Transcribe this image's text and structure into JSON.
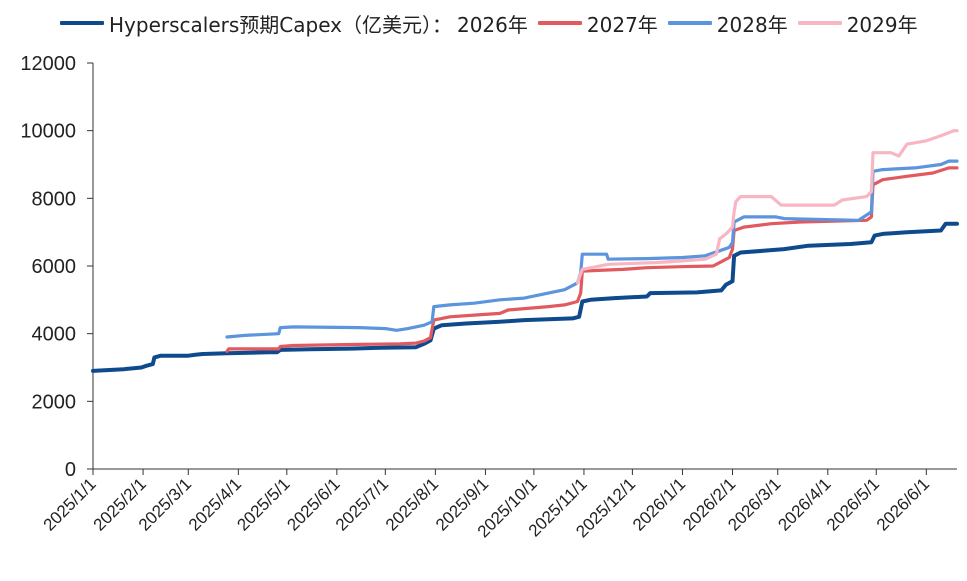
{
  "chart_data": {
    "type": "line",
    "title": "",
    "xlabel": "",
    "ylabel": "",
    "ylim": [
      0,
      12000
    ],
    "yticks": [
      0,
      2000,
      4000,
      6000,
      8000,
      10000,
      12000
    ],
    "x_range": [
      "2025-01-01",
      "2026-06-20"
    ],
    "x_tick_labels": [
      "2025/1/1",
      "2025/2/1",
      "2025/3/1",
      "2025/4/1",
      "2025/5/1",
      "2025/6/1",
      "2025/7/1",
      "2025/8/1",
      "2025/9/1",
      "2025/10/1",
      "2025/11/1",
      "2025/12/1",
      "2026/1/1",
      "2026/2/1",
      "2026/3/1",
      "2026/4/1",
      "2026/5/1",
      "2026/6/1"
    ],
    "grid": false,
    "legend_position": "top",
    "legend_prefix": "Hyperscalers预期Capex（亿美元）：",
    "series": [
      {
        "name": "2026年",
        "color": "#0e4a8c",
        "points": [
          [
            "2025-01-01",
            2900
          ],
          [
            "2025-01-20",
            2950
          ],
          [
            "2025-01-31",
            3000
          ],
          [
            "2025-02-03",
            3050
          ],
          [
            "2025-02-07",
            3100
          ],
          [
            "2025-02-08",
            3300
          ],
          [
            "2025-02-12",
            3350
          ],
          [
            "2025-03-01",
            3350
          ],
          [
            "2025-03-06",
            3380
          ],
          [
            "2025-03-10",
            3400
          ],
          [
            "2025-03-25",
            3420
          ],
          [
            "2025-04-20",
            3450
          ],
          [
            "2025-04-25",
            3450
          ],
          [
            "2025-04-27",
            3520
          ],
          [
            "2025-05-15",
            3540
          ],
          [
            "2025-06-10",
            3560
          ],
          [
            "2025-06-25",
            3580
          ],
          [
            "2025-07-20",
            3600
          ],
          [
            "2025-07-25",
            3700
          ],
          [
            "2025-07-29",
            3800
          ],
          [
            "2025-07-31",
            4150
          ],
          [
            "2025-08-05",
            4250
          ],
          [
            "2025-08-20",
            4300
          ],
          [
            "2025-09-10",
            4350
          ],
          [
            "2025-09-25",
            4400
          ],
          [
            "2025-10-25",
            4450
          ],
          [
            "2025-10-29",
            4500
          ],
          [
            "2025-10-31",
            4950
          ],
          [
            "2025-11-05",
            5000
          ],
          [
            "2025-11-20",
            5050
          ],
          [
            "2025-12-10",
            5100
          ],
          [
            "2025-12-12",
            5200
          ],
          [
            "2026-01-10",
            5220
          ],
          [
            "2026-01-25",
            5280
          ],
          [
            "2026-01-28",
            5450
          ],
          [
            "2026-02-01",
            5550
          ],
          [
            "2026-02-02",
            6300
          ],
          [
            "2026-02-06",
            6400
          ],
          [
            "2026-02-20",
            6450
          ],
          [
            "2026-03-05",
            6500
          ],
          [
            "2026-03-20",
            6600
          ],
          [
            "2026-04-15",
            6650
          ],
          [
            "2026-04-28",
            6700
          ],
          [
            "2026-04-30",
            6900
          ],
          [
            "2026-05-05",
            6950
          ],
          [
            "2026-05-20",
            7000
          ],
          [
            "2026-06-10",
            7050
          ],
          [
            "2026-06-13",
            7250
          ],
          [
            "2026-06-20",
            7250
          ]
        ]
      },
      {
        "name": "2027年",
        "color": "#e05a5f",
        "points": [
          [
            "2025-03-25",
            3480
          ],
          [
            "2025-03-26",
            3550
          ],
          [
            "2025-04-26",
            3550
          ],
          [
            "2025-04-27",
            3620
          ],
          [
            "2025-05-05",
            3650
          ],
          [
            "2025-06-10",
            3680
          ],
          [
            "2025-07-10",
            3700
          ],
          [
            "2025-07-20",
            3720
          ],
          [
            "2025-07-25",
            3780
          ],
          [
            "2025-07-29",
            3880
          ],
          [
            "2025-07-31",
            4400
          ],
          [
            "2025-08-10",
            4500
          ],
          [
            "2025-08-25",
            4550
          ],
          [
            "2025-09-10",
            4600
          ],
          [
            "2025-09-15",
            4700
          ],
          [
            "2025-10-10",
            4800
          ],
          [
            "2025-10-20",
            4850
          ],
          [
            "2025-10-28",
            4950
          ],
          [
            "2025-10-30",
            5200
          ],
          [
            "2025-10-31",
            5850
          ],
          [
            "2025-11-10",
            5870
          ],
          [
            "2025-11-25",
            5900
          ],
          [
            "2025-12-10",
            5950
          ],
          [
            "2025-12-31",
            5980
          ],
          [
            "2026-01-20",
            6000
          ],
          [
            "2026-01-26",
            6150
          ],
          [
            "2026-01-30",
            6250
          ],
          [
            "2026-02-01",
            6500
          ],
          [
            "2026-02-02",
            7050
          ],
          [
            "2026-02-08",
            7150
          ],
          [
            "2026-02-25",
            7250
          ],
          [
            "2026-03-15",
            7300
          ],
          [
            "2026-04-25",
            7350
          ],
          [
            "2026-04-28",
            7450
          ],
          [
            "2026-04-29",
            8400
          ],
          [
            "2026-05-05",
            8550
          ],
          [
            "2026-05-20",
            8650
          ],
          [
            "2026-06-05",
            8750
          ],
          [
            "2026-06-15",
            8900
          ],
          [
            "2026-06-20",
            8900
          ]
        ]
      },
      {
        "name": "2028年",
        "color": "#5b95dd",
        "points": [
          [
            "2025-03-25",
            3900
          ],
          [
            "2025-04-05",
            3950
          ],
          [
            "2025-04-26",
            4000
          ],
          [
            "2025-04-27",
            4180
          ],
          [
            "2025-05-05",
            4200
          ],
          [
            "2025-06-15",
            4180
          ],
          [
            "2025-07-01",
            4150
          ],
          [
            "2025-07-08",
            4100
          ],
          [
            "2025-07-15",
            4150
          ],
          [
            "2025-07-25",
            4250
          ],
          [
            "2025-07-30",
            4350
          ],
          [
            "2025-07-31",
            4800
          ],
          [
            "2025-08-10",
            4850
          ],
          [
            "2025-08-25",
            4900
          ],
          [
            "2025-09-10",
            5000
          ],
          [
            "2025-09-25",
            5050
          ],
          [
            "2025-10-10",
            5200
          ],
          [
            "2025-10-20",
            5300
          ],
          [
            "2025-10-28",
            5500
          ],
          [
            "2025-10-30",
            5800
          ],
          [
            "2025-10-31",
            6350
          ],
          [
            "2025-11-15",
            6350
          ],
          [
            "2025-11-16",
            6200
          ],
          [
            "2025-12-10",
            6220
          ],
          [
            "2026-01-01",
            6250
          ],
          [
            "2026-01-15",
            6300
          ],
          [
            "2026-01-24",
            6450
          ],
          [
            "2026-01-30",
            6550
          ],
          [
            "2026-02-01",
            6700
          ],
          [
            "2026-02-02",
            7300
          ],
          [
            "2026-02-08",
            7450
          ],
          [
            "2026-02-28",
            7450
          ],
          [
            "2026-03-05",
            7400
          ],
          [
            "2026-04-20",
            7350
          ],
          [
            "2026-04-28",
            7600
          ],
          [
            "2026-04-29",
            8800
          ],
          [
            "2026-05-05",
            8850
          ],
          [
            "2026-05-25",
            8900
          ],
          [
            "2026-06-10",
            9000
          ],
          [
            "2026-06-15",
            9100
          ],
          [
            "2026-06-20",
            9100
          ]
        ]
      },
      {
        "name": "2029年",
        "color": "#f8b6c2",
        "points": [
          [
            "2025-10-28",
            5500
          ],
          [
            "2025-10-31",
            5900
          ],
          [
            "2025-11-16",
            6050
          ],
          [
            "2025-12-15",
            6100
          ],
          [
            "2026-01-01",
            6150
          ],
          [
            "2026-01-15",
            6200
          ],
          [
            "2026-01-22",
            6350
          ],
          [
            "2026-01-24",
            6800
          ],
          [
            "2026-01-28",
            6950
          ],
          [
            "2026-02-01",
            7150
          ],
          [
            "2026-02-02",
            7600
          ],
          [
            "2026-02-03",
            7900
          ],
          [
            "2026-02-06",
            8050
          ],
          [
            "2026-02-25",
            8050
          ],
          [
            "2026-03-03",
            7800
          ],
          [
            "2026-04-05",
            7800
          ],
          [
            "2026-04-10",
            7950
          ],
          [
            "2026-04-25",
            8050
          ],
          [
            "2026-04-28",
            8200
          ],
          [
            "2026-04-29",
            9350
          ],
          [
            "2026-05-10",
            9350
          ],
          [
            "2026-05-15",
            9250
          ],
          [
            "2026-05-20",
            9600
          ],
          [
            "2026-06-01",
            9700
          ],
          [
            "2026-06-10",
            9850
          ],
          [
            "2026-06-18",
            10000
          ],
          [
            "2026-06-20",
            10000
          ]
        ]
      }
    ]
  }
}
